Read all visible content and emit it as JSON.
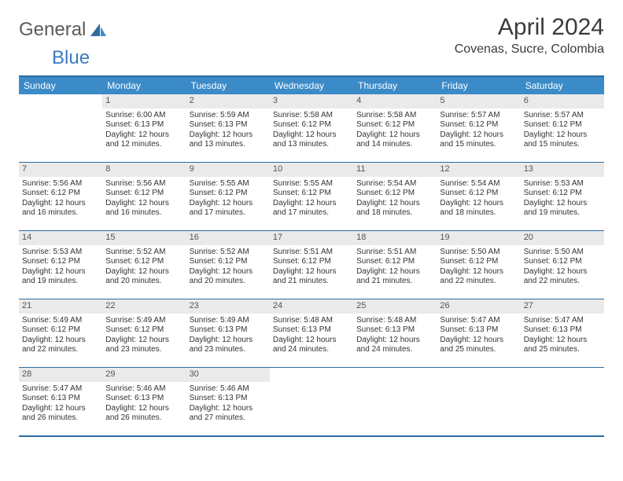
{
  "logo": {
    "text_general": "General",
    "text_blue": "Blue"
  },
  "title": "April 2024",
  "location": "Covenas, Sucre, Colombia",
  "colors": {
    "header_bg": "#3b8bc8",
    "header_text": "#ffffff",
    "border": "#2d6ca2",
    "daynum_bg": "#eaeaea",
    "body_text": "#333333",
    "logo_blue": "#3b7bbf"
  },
  "typography": {
    "title_fontsize": 30,
    "location_fontsize": 16,
    "dow_fontsize": 12,
    "body_fontsize": 10
  },
  "days_of_week": [
    "Sunday",
    "Monday",
    "Tuesday",
    "Wednesday",
    "Thursday",
    "Friday",
    "Saturday"
  ],
  "weeks": [
    [
      {
        "num": "",
        "text": ""
      },
      {
        "num": "1",
        "text": "Sunrise: 6:00 AM\nSunset: 6:13 PM\nDaylight: 12 hours and 12 minutes."
      },
      {
        "num": "2",
        "text": "Sunrise: 5:59 AM\nSunset: 6:13 PM\nDaylight: 12 hours and 13 minutes."
      },
      {
        "num": "3",
        "text": "Sunrise: 5:58 AM\nSunset: 6:12 PM\nDaylight: 12 hours and 13 minutes."
      },
      {
        "num": "4",
        "text": "Sunrise: 5:58 AM\nSunset: 6:12 PM\nDaylight: 12 hours and 14 minutes."
      },
      {
        "num": "5",
        "text": "Sunrise: 5:57 AM\nSunset: 6:12 PM\nDaylight: 12 hours and 15 minutes."
      },
      {
        "num": "6",
        "text": "Sunrise: 5:57 AM\nSunset: 6:12 PM\nDaylight: 12 hours and 15 minutes."
      }
    ],
    [
      {
        "num": "7",
        "text": "Sunrise: 5:56 AM\nSunset: 6:12 PM\nDaylight: 12 hours and 16 minutes."
      },
      {
        "num": "8",
        "text": "Sunrise: 5:56 AM\nSunset: 6:12 PM\nDaylight: 12 hours and 16 minutes."
      },
      {
        "num": "9",
        "text": "Sunrise: 5:55 AM\nSunset: 6:12 PM\nDaylight: 12 hours and 17 minutes."
      },
      {
        "num": "10",
        "text": "Sunrise: 5:55 AM\nSunset: 6:12 PM\nDaylight: 12 hours and 17 minutes."
      },
      {
        "num": "11",
        "text": "Sunrise: 5:54 AM\nSunset: 6:12 PM\nDaylight: 12 hours and 18 minutes."
      },
      {
        "num": "12",
        "text": "Sunrise: 5:54 AM\nSunset: 6:12 PM\nDaylight: 12 hours and 18 minutes."
      },
      {
        "num": "13",
        "text": "Sunrise: 5:53 AM\nSunset: 6:12 PM\nDaylight: 12 hours and 19 minutes."
      }
    ],
    [
      {
        "num": "14",
        "text": "Sunrise: 5:53 AM\nSunset: 6:12 PM\nDaylight: 12 hours and 19 minutes."
      },
      {
        "num": "15",
        "text": "Sunrise: 5:52 AM\nSunset: 6:12 PM\nDaylight: 12 hours and 20 minutes."
      },
      {
        "num": "16",
        "text": "Sunrise: 5:52 AM\nSunset: 6:12 PM\nDaylight: 12 hours and 20 minutes."
      },
      {
        "num": "17",
        "text": "Sunrise: 5:51 AM\nSunset: 6:12 PM\nDaylight: 12 hours and 21 minutes."
      },
      {
        "num": "18",
        "text": "Sunrise: 5:51 AM\nSunset: 6:12 PM\nDaylight: 12 hours and 21 minutes."
      },
      {
        "num": "19",
        "text": "Sunrise: 5:50 AM\nSunset: 6:12 PM\nDaylight: 12 hours and 22 minutes."
      },
      {
        "num": "20",
        "text": "Sunrise: 5:50 AM\nSunset: 6:12 PM\nDaylight: 12 hours and 22 minutes."
      }
    ],
    [
      {
        "num": "21",
        "text": "Sunrise: 5:49 AM\nSunset: 6:12 PM\nDaylight: 12 hours and 22 minutes."
      },
      {
        "num": "22",
        "text": "Sunrise: 5:49 AM\nSunset: 6:12 PM\nDaylight: 12 hours and 23 minutes."
      },
      {
        "num": "23",
        "text": "Sunrise: 5:49 AM\nSunset: 6:13 PM\nDaylight: 12 hours and 23 minutes."
      },
      {
        "num": "24",
        "text": "Sunrise: 5:48 AM\nSunset: 6:13 PM\nDaylight: 12 hours and 24 minutes."
      },
      {
        "num": "25",
        "text": "Sunrise: 5:48 AM\nSunset: 6:13 PM\nDaylight: 12 hours and 24 minutes."
      },
      {
        "num": "26",
        "text": "Sunrise: 5:47 AM\nSunset: 6:13 PM\nDaylight: 12 hours and 25 minutes."
      },
      {
        "num": "27",
        "text": "Sunrise: 5:47 AM\nSunset: 6:13 PM\nDaylight: 12 hours and 25 minutes."
      }
    ],
    [
      {
        "num": "28",
        "text": "Sunrise: 5:47 AM\nSunset: 6:13 PM\nDaylight: 12 hours and 26 minutes."
      },
      {
        "num": "29",
        "text": "Sunrise: 5:46 AM\nSunset: 6:13 PM\nDaylight: 12 hours and 26 minutes."
      },
      {
        "num": "30",
        "text": "Sunrise: 5:46 AM\nSunset: 6:13 PM\nDaylight: 12 hours and 27 minutes."
      },
      {
        "num": "",
        "text": ""
      },
      {
        "num": "",
        "text": ""
      },
      {
        "num": "",
        "text": ""
      },
      {
        "num": "",
        "text": ""
      }
    ]
  ]
}
